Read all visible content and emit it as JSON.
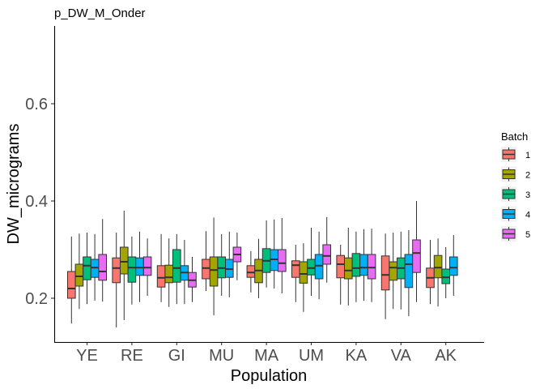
{
  "chart_data": {
    "type": "boxplot",
    "title": "p_DW_M_Onder",
    "xlabel": "Population",
    "ylabel": "DW_micrograms",
    "ylim": [
      0.11,
      0.76
    ],
    "yticks": [
      0.2,
      0.4,
      0.6
    ],
    "ytick_labels": [
      "0.2",
      "0.4",
      "0.6"
    ],
    "grid": false,
    "legend": {
      "title": "Batch",
      "position": "right"
    },
    "categories": [
      "YE",
      "RE",
      "GI",
      "MU",
      "MA",
      "UM",
      "KA",
      "VA",
      "AK"
    ],
    "series": [
      {
        "name": "1",
        "color": "#F8766D",
        "boxes": [
          {
            "min": 0.148,
            "q1": 0.2,
            "median": 0.22,
            "q3": 0.255,
            "max": 0.327
          },
          {
            "min": 0.14,
            "q1": 0.232,
            "median": 0.262,
            "q3": 0.283,
            "max": 0.335
          },
          {
            "min": 0.192,
            "q1": 0.223,
            "median": 0.242,
            "q3": 0.267,
            "max": 0.332
          },
          {
            "min": 0.215,
            "q1": 0.24,
            "median": 0.262,
            "q3": 0.28,
            "max": 0.338
          },
          {
            "min": 0.212,
            "q1": 0.243,
            "median": 0.253,
            "q3": 0.267,
            "max": 0.297
          },
          {
            "min": 0.192,
            "q1": 0.243,
            "median": 0.268,
            "q3": 0.277,
            "max": 0.31
          },
          {
            "min": 0.187,
            "q1": 0.242,
            "median": 0.27,
            "q3": 0.288,
            "max": 0.31
          },
          {
            "min": 0.157,
            "q1": 0.217,
            "median": 0.248,
            "q3": 0.287,
            "max": 0.333
          },
          {
            "min": 0.188,
            "q1": 0.222,
            "median": 0.242,
            "q3": 0.262,
            "max": 0.32
          }
        ]
      },
      {
        "name": "2",
        "color": "#A3A500",
        "boxes": [
          {
            "min": 0.178,
            "q1": 0.225,
            "median": 0.245,
            "q3": 0.27,
            "max": 0.333
          },
          {
            "min": 0.155,
            "q1": 0.25,
            "median": 0.275,
            "q3": 0.305,
            "max": 0.38
          },
          {
            "min": 0.182,
            "q1": 0.232,
            "median": 0.243,
            "q3": 0.268,
            "max": 0.323
          },
          {
            "min": 0.165,
            "q1": 0.225,
            "median": 0.258,
            "q3": 0.285,
            "max": 0.366
          },
          {
            "min": 0.2,
            "q1": 0.232,
            "median": 0.257,
            "q3": 0.28,
            "max": 0.322
          },
          {
            "min": 0.172,
            "q1": 0.231,
            "median": 0.25,
            "q3": 0.275,
            "max": 0.313
          },
          {
            "min": 0.185,
            "q1": 0.24,
            "median": 0.257,
            "q3": 0.283,
            "max": 0.345
          },
          {
            "min": 0.178,
            "q1": 0.237,
            "median": 0.263,
            "q3": 0.275,
            "max": 0.335
          },
          {
            "min": 0.183,
            "q1": 0.242,
            "median": 0.263,
            "q3": 0.288,
            "max": 0.323
          }
        ]
      },
      {
        "name": "3",
        "color": "#00BF7D",
        "boxes": [
          {
            "min": 0.188,
            "q1": 0.238,
            "median": 0.267,
            "q3": 0.285,
            "max": 0.335
          },
          {
            "min": 0.187,
            "q1": 0.233,
            "median": 0.263,
            "q3": 0.285,
            "max": 0.327
          },
          {
            "min": 0.188,
            "q1": 0.233,
            "median": 0.262,
            "q3": 0.3,
            "max": 0.332
          },
          {
            "min": 0.205,
            "q1": 0.242,
            "median": 0.262,
            "q3": 0.285,
            "max": 0.332
          },
          {
            "min": 0.222,
            "q1": 0.253,
            "median": 0.277,
            "q3": 0.302,
            "max": 0.36
          },
          {
            "min": 0.205,
            "q1": 0.248,
            "median": 0.262,
            "q3": 0.28,
            "max": 0.345
          },
          {
            "min": 0.192,
            "q1": 0.245,
            "median": 0.262,
            "q3": 0.292,
            "max": 0.337
          },
          {
            "min": 0.177,
            "q1": 0.24,
            "median": 0.262,
            "q3": 0.283,
            "max": 0.337
          },
          {
            "min": 0.2,
            "q1": 0.23,
            "median": 0.243,
            "q3": 0.26,
            "max": 0.305
          }
        ]
      },
      {
        "name": "4",
        "color": "#00B0F6",
        "boxes": [
          {
            "min": 0.195,
            "q1": 0.243,
            "median": 0.263,
            "q3": 0.28,
            "max": 0.332
          },
          {
            "min": 0.192,
            "q1": 0.247,
            "median": 0.263,
            "q3": 0.283,
            "max": 0.337
          },
          {
            "min": 0.188,
            "q1": 0.237,
            "median": 0.253,
            "q3": 0.267,
            "max": 0.32
          },
          {
            "min": 0.202,
            "q1": 0.243,
            "median": 0.26,
            "q3": 0.28,
            "max": 0.337
          },
          {
            "min": 0.22,
            "q1": 0.257,
            "median": 0.28,
            "q3": 0.3,
            "max": 0.362
          },
          {
            "min": 0.198,
            "q1": 0.24,
            "median": 0.267,
            "q3": 0.29,
            "max": 0.337
          },
          {
            "min": 0.195,
            "q1": 0.247,
            "median": 0.263,
            "q3": 0.29,
            "max": 0.342
          },
          {
            "min": 0.163,
            "q1": 0.222,
            "median": 0.27,
            "q3": 0.29,
            "max": 0.34
          },
          {
            "min": 0.205,
            "q1": 0.247,
            "median": 0.263,
            "q3": 0.285,
            "max": 0.33
          }
        ]
      },
      {
        "name": "5",
        "color": "#E76BF3",
        "boxes": [
          {
            "min": 0.193,
            "q1": 0.237,
            "median": 0.255,
            "q3": 0.29,
            "max": 0.363
          },
          {
            "min": 0.205,
            "q1": 0.247,
            "median": 0.263,
            "q3": 0.285,
            "max": 0.323
          },
          {
            "min": 0.192,
            "q1": 0.223,
            "median": 0.237,
            "q3": 0.253,
            "max": 0.285
          },
          {
            "min": 0.237,
            "q1": 0.275,
            "median": 0.29,
            "q3": 0.305,
            "max": 0.335
          },
          {
            "min": 0.21,
            "q1": 0.255,
            "median": 0.272,
            "q3": 0.3,
            "max": 0.365
          },
          {
            "min": 0.232,
            "q1": 0.27,
            "median": 0.287,
            "q3": 0.31,
            "max": 0.367
          },
          {
            "min": 0.192,
            "q1": 0.24,
            "median": 0.263,
            "q3": 0.29,
            "max": 0.343
          },
          {
            "min": 0.192,
            "q1": 0.253,
            "median": 0.293,
            "q3": 0.32,
            "max": 0.4
          },
          {}
        ]
      }
    ]
  }
}
